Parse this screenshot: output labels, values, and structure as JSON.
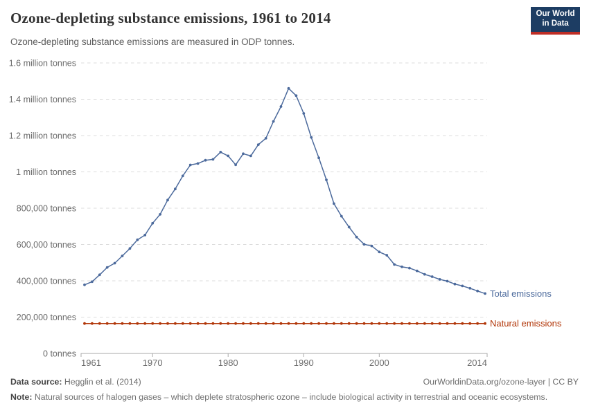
{
  "header": {
    "title": "Ozone-depleting substance emissions, 1961 to 2014",
    "subtitle": "Ozone-depleting substance emissions are measured in ODP tonnes.",
    "logo": {
      "line1": "Our World",
      "line2": "in Data"
    }
  },
  "chart_data": {
    "type": "line",
    "title": "Ozone-depleting substance emissions, 1961 to 2014",
    "subtitle": "Ozone-depleting substance emissions are measured in ODP tonnes.",
    "xlabel": "",
    "ylabel": "ODP tonnes",
    "ylim": [
      0,
      1600000
    ],
    "xlim": [
      1961,
      2014
    ],
    "grid": "horizontal-dashed",
    "legend_position": "end-of-line-labels",
    "x": [
      1961,
      1962,
      1963,
      1964,
      1965,
      1966,
      1967,
      1968,
      1969,
      1970,
      1971,
      1972,
      1973,
      1974,
      1975,
      1976,
      1977,
      1978,
      1979,
      1980,
      1981,
      1982,
      1983,
      1984,
      1985,
      1986,
      1987,
      1988,
      1989,
      1990,
      1991,
      1992,
      1993,
      1994,
      1995,
      1996,
      1997,
      1998,
      1999,
      2000,
      2001,
      2002,
      2003,
      2004,
      2005,
      2006,
      2007,
      2008,
      2009,
      2010,
      2011,
      2012,
      2013,
      2014
    ],
    "x_ticks": [
      1961,
      1970,
      1980,
      1990,
      2000,
      2014
    ],
    "y_ticks": [
      {
        "value": 0,
        "label": "0 tonnes"
      },
      {
        "value": 200000,
        "label": "200,000 tonnes"
      },
      {
        "value": 400000,
        "label": "400,000 tonnes"
      },
      {
        "value": 600000,
        "label": "600,000 tonnes"
      },
      {
        "value": 800000,
        "label": "800,000 tonnes"
      },
      {
        "value": 1000000,
        "label": "1 million tonnes"
      },
      {
        "value": 1200000,
        "label": "1.2 million tonnes"
      },
      {
        "value": 1400000,
        "label": "1.4 million tonnes"
      },
      {
        "value": 1600000,
        "label": "1.6 million tonnes"
      }
    ],
    "series": [
      {
        "name": "Total emissions",
        "color": "#4C6A9C",
        "values": [
          378000,
          395000,
          433000,
          474000,
          497000,
          537000,
          578000,
          626000,
          652000,
          717000,
          766000,
          845000,
          906000,
          978000,
          1038000,
          1046000,
          1064000,
          1069000,
          1109000,
          1088000,
          1039000,
          1100000,
          1088000,
          1150000,
          1185000,
          1278000,
          1360000,
          1460000,
          1420000,
          1322000,
          1190000,
          1077000,
          956000,
          825000,
          756000,
          696000,
          641000,
          601000,
          592000,
          559000,
          541000,
          490000,
          477000,
          470000,
          455000,
          436000,
          423000,
          408000,
          398000,
          382000,
          372000,
          359000,
          344000,
          330000
        ]
      },
      {
        "name": "Natural emissions",
        "color": "#B13507",
        "values": [
          165000,
          165000,
          165000,
          165000,
          165000,
          165000,
          165000,
          165000,
          165000,
          165000,
          165000,
          165000,
          165000,
          165000,
          165000,
          165000,
          165000,
          165000,
          165000,
          165000,
          165000,
          165000,
          165000,
          165000,
          165000,
          165000,
          165000,
          165000,
          165000,
          165000,
          165000,
          165000,
          165000,
          165000,
          165000,
          165000,
          165000,
          165000,
          165000,
          165000,
          165000,
          165000,
          165000,
          165000,
          165000,
          165000,
          165000,
          165000,
          165000,
          165000,
          165000,
          165000,
          165000,
          165000
        ]
      }
    ],
    "colors": {
      "grid": "#dcdcdc",
      "axis": "#a9a9a9",
      "tick_label": "#6b6b6b"
    }
  },
  "footer": {
    "source_label": "Data source:",
    "source_value": "Hegglin et al. (2014)",
    "link": "OurWorldinData.org/ozone-layer | CC BY",
    "note_label": "Note:",
    "note_value": "Natural sources of halogen gases – which deplete stratospheric ozone – include biological activity in terrestrial and oceanic ecosystems."
  }
}
